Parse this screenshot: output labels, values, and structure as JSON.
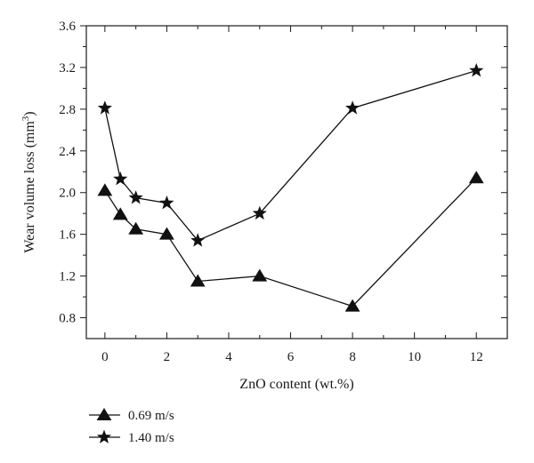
{
  "chart_data": {
    "type": "line",
    "xlabel": "ZnO content (wt.%)",
    "ylabel_main": "Wear volume loss (mm",
    "ylabel_sup": "3",
    "ylabel_close": ")",
    "xlim": [
      -0.6,
      13
    ],
    "ylim": [
      0.6,
      3.6
    ],
    "xticks": [
      0,
      2,
      4,
      6,
      8,
      10,
      12
    ],
    "xtick_labels": [
      "0",
      "2",
      "4",
      "6",
      "8",
      "10",
      "12"
    ],
    "yticks": [
      0.8,
      1.2,
      1.6,
      2.0,
      2.4,
      2.8,
      3.2,
      3.6
    ],
    "ytick_labels": [
      "0.8",
      "1.2",
      "1.6",
      "2.0",
      "2.4",
      "2.8",
      "3.2",
      "3.6"
    ],
    "legend_position": "bottom-left, below axes",
    "series": [
      {
        "name": "0.69 m/s",
        "marker": "triangle",
        "x": [
          0,
          0.5,
          1,
          2,
          3,
          5,
          8,
          12
        ],
        "y": [
          2.02,
          1.79,
          1.65,
          1.6,
          1.15,
          1.2,
          0.91,
          2.14
        ]
      },
      {
        "name": "1.40 m/s",
        "marker": "star",
        "x": [
          0,
          0.5,
          1,
          2,
          3,
          5,
          8,
          12
        ],
        "y": [
          2.81,
          2.13,
          1.95,
          1.9,
          1.54,
          1.8,
          2.81,
          3.17
        ]
      }
    ]
  }
}
